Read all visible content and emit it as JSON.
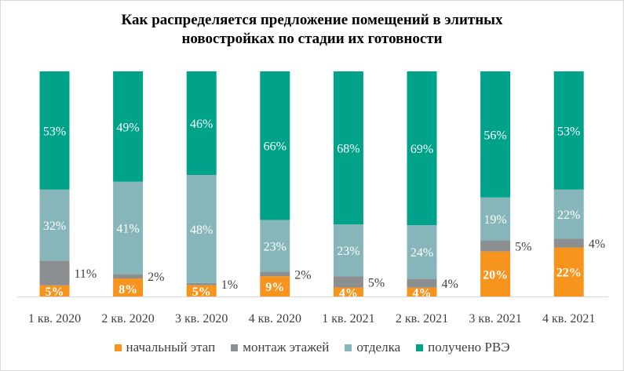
{
  "title_line1": "Как распределяется предложение помещений в элитных",
  "title_line2": "новостройках по стадии их готовности",
  "colors": {
    "start": "#F7941D",
    "floors": "#8C8F92",
    "finish": "#87B6BA",
    "ready": "#00A28A"
  },
  "chart_data": {
    "type": "bar",
    "stacked": true,
    "percent": true,
    "categories": [
      "1 кв. 2020",
      "2 кв. 2020",
      "3 кв. 2020",
      "4 кв. 2020",
      "1 кв. 2021",
      "2 кв. 2021",
      "3 кв. 2021",
      "4 кв. 2021"
    ],
    "series": [
      {
        "name": "начальный этап",
        "values": [
          5,
          8,
          5,
          9,
          4,
          4,
          20,
          22
        ],
        "labels": [
          "5%",
          "8%",
          "5%",
          "9%",
          "4%",
          "4%",
          "20%",
          "22%"
        ]
      },
      {
        "name": "монтаж этажей",
        "values": [
          11,
          2,
          1,
          2,
          5,
          4,
          5,
          4
        ],
        "labels": [
          "11%",
          "2%",
          "1%",
          "2%",
          "5%",
          "4%",
          "5%",
          "4%"
        ]
      },
      {
        "name": "отделка",
        "values": [
          32,
          41,
          48,
          23,
          23,
          24,
          19,
          22
        ],
        "labels": [
          "32%",
          "41%",
          "48%",
          "23%",
          "23%",
          "24%",
          "19%",
          "22%"
        ]
      },
      {
        "name": "получено РВЭ",
        "values": [
          53,
          49,
          46,
          66,
          68,
          69,
          56,
          53
        ],
        "labels": [
          "53%",
          "49%",
          "46%",
          "66%",
          "68%",
          "69%",
          "56%",
          "53%"
        ]
      }
    ],
    "ylim": [
      0,
      100
    ],
    "grid": false,
    "legend_position": "bottom"
  }
}
